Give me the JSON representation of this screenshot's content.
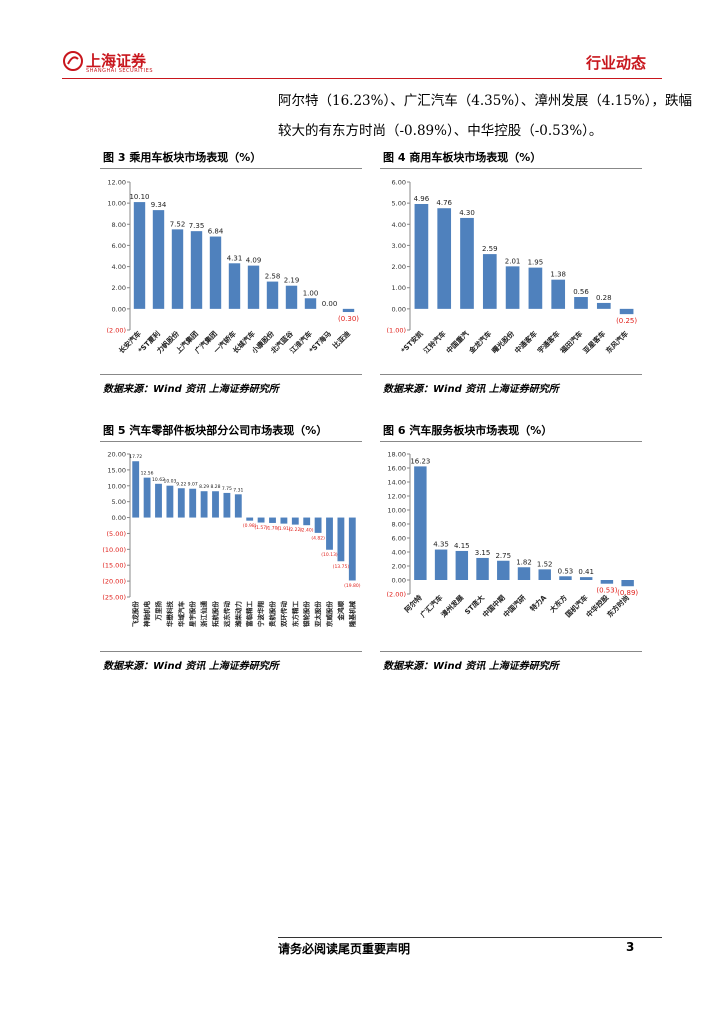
{
  "header": {
    "logo": "上海证券",
    "logo_en": "SHANGHAI SECURITIES",
    "section": "行业动态"
  },
  "paragraph": [
    "阿尔特（16.23%）、广汇汽车（4.35%）、漳州发展（4.15%），跌幅",
    "较大的有东方时尚（-0.89%）、中华控股（-0.53%）。"
  ],
  "chart_data": [
    {
      "type": "bar",
      "title": "图 3 乘用车板块市场表现（%）",
      "source": "数据来源：Wind 资讯 上海证券研究所",
      "color": "#4f81bd",
      "negative_label_color": "#e0201b",
      "categories": [
        "长安汽车",
        "*ST夏利",
        "力帆股份",
        "上汽集团",
        "广汽集团",
        "一汽轿车",
        "长城汽车",
        "小康股份",
        "北汽蓝谷",
        "江淮汽车",
        "*ST海马",
        "比亚迪"
      ],
      "values": [
        10.1,
        9.34,
        7.52,
        7.35,
        6.84,
        4.31,
        4.09,
        2.58,
        2.19,
        1.0,
        0.0,
        -0.3
      ],
      "value_labels": [
        "10.10",
        "9.34",
        "7.52",
        "7.35",
        "6.84",
        "4.31",
        "4.09",
        "2.58",
        "2.19",
        "1.00",
        "0.00",
        "(0.30)"
      ],
      "ylim": [
        -2,
        12
      ],
      "yticks": [
        {
          "value": -2,
          "label": "(2.00)"
        },
        {
          "value": 0,
          "label": "0.00"
        },
        {
          "value": 2,
          "label": "2.00"
        },
        {
          "value": 4,
          "label": "4.00"
        },
        {
          "value": 6,
          "label": "6.00"
        },
        {
          "value": 8,
          "label": "8.00"
        },
        {
          "value": 10,
          "label": "10.00"
        },
        {
          "value": 12,
          "label": "12.00"
        }
      ]
    },
    {
      "type": "bar",
      "title": "图 4 商用车板块市场表现（%）",
      "source": "数据来源：Wind 资讯 上海证券研究所",
      "color": "#4f81bd",
      "negative_label_color": "#e0201b",
      "categories": [
        "*ST安凯",
        "江铃汽车",
        "中国重汽",
        "金龙汽车",
        "曙光股份",
        "中通客车",
        "宇通客车",
        "福田汽车",
        "亚星客车",
        "东风汽车"
      ],
      "values": [
        4.96,
        4.76,
        4.3,
        2.59,
        2.01,
        1.95,
        1.38,
        0.56,
        0.28,
        -0.25
      ],
      "value_labels": [
        "4.96",
        "4.76",
        "4.30",
        "2.59",
        "2.01",
        "1.95",
        "1.38",
        "0.56",
        "0.28",
        "(0.25)"
      ],
      "ylim": [
        -1,
        6
      ],
      "yticks": [
        {
          "value": -1,
          "label": "(1.00)"
        },
        {
          "value": 0,
          "label": "0.00"
        },
        {
          "value": 1,
          "label": "1.00"
        },
        {
          "value": 2,
          "label": "2.00"
        },
        {
          "value": 3,
          "label": "3.00"
        },
        {
          "value": 4,
          "label": "4.00"
        },
        {
          "value": 5,
          "label": "5.00"
        },
        {
          "value": 6,
          "label": "6.00"
        }
      ]
    },
    {
      "type": "bar",
      "title": "图 5 汽车零部件板块部分公司市场表现（%）",
      "source": "数据来源：Wind 资讯 上海证券研究所",
      "color": "#4f81bd",
      "negative_label_color": "#e0201b",
      "categories": [
        "飞龙股份",
        "神驰机电",
        "万里扬",
        "华懋科技",
        "华域汽车",
        "星宇股份",
        "浙江仙通",
        "拓航股份",
        "远东传动",
        "潍柴动力",
        "富临精工",
        "宁波华翔",
        "贵航股份",
        "双环传动",
        "东方精工",
        "银轮股份",
        "亚太股份",
        "京威股份",
        "金鸿顺",
        "隆基机械"
      ],
      "values": [
        17.72,
        12.56,
        10.62,
        10.03,
        9.22,
        9.07,
        8.29,
        8.28,
        7.75,
        7.31,
        -0.98,
        -1.57,
        -1.7,
        -1.91,
        -2.22,
        -2.4,
        -4.82,
        -10.13,
        -13.75,
        -19.8
      ],
      "value_labels": [
        "17.72",
        "12.56",
        "10.62",
        "10.03",
        "9.22",
        "9.07",
        "8.29",
        "8.28",
        "7.75",
        "7.31",
        "(0.98)",
        "(1.57)",
        "(1.70)",
        "(1.91)",
        "(2.22)",
        "(2.40)",
        "(4.82)",
        "(10.13)",
        "(13.75)",
        "(19.80)"
      ],
      "ylim": [
        -25,
        20
      ],
      "yticks": [
        {
          "value": -25,
          "label": "(25.00)"
        },
        {
          "value": -20,
          "label": "(20.00)"
        },
        {
          "value": -15,
          "label": "(15.00)"
        },
        {
          "value": -10,
          "label": "(10.00)"
        },
        {
          "value": -5,
          "label": "(5.00)"
        },
        {
          "value": 0,
          "label": "0.00"
        },
        {
          "value": 5,
          "label": "5.00"
        },
        {
          "value": 10,
          "label": "10.00"
        },
        {
          "value": 15,
          "label": "15.00"
        },
        {
          "value": 20,
          "label": "20.00"
        }
      ]
    },
    {
      "type": "bar",
      "title": "图 6 汽车服务板块市场表现（%）",
      "source": "数据来源：Wind 资讯 上海证券研究所",
      "color": "#4f81bd",
      "negative_label_color": "#e0201b",
      "categories": [
        "阿尔特",
        "广汇汽车",
        "漳州发展",
        "ST庞大",
        "中国中期",
        "中国汽研",
        "特力A",
        "大东方",
        "国机汽车",
        "中华控股",
        "东方时尚"
      ],
      "values": [
        16.23,
        4.35,
        4.15,
        3.15,
        2.75,
        1.82,
        1.52,
        0.53,
        0.41,
        -0.53,
        -0.89
      ],
      "value_labels": [
        "16.23",
        "4.35",
        "4.15",
        "3.15",
        "2.75",
        "1.82",
        "1.52",
        "0.53",
        "0.41",
        "(0.53)",
        "(0.89)"
      ],
      "ylim": [
        -2,
        18
      ],
      "yticks": [
        {
          "value": -2,
          "label": "(2.00)"
        },
        {
          "value": 0,
          "label": "0.00"
        },
        {
          "value": 2,
          "label": "2.00"
        },
        {
          "value": 4,
          "label": "4.00"
        },
        {
          "value": 6,
          "label": "6.00"
        },
        {
          "value": 8,
          "label": "8.00"
        },
        {
          "value": 10,
          "label": "10.00"
        },
        {
          "value": 12,
          "label": "12.00"
        },
        {
          "value": 14,
          "label": "14.00"
        },
        {
          "value": 16,
          "label": "16.00"
        },
        {
          "value": 18,
          "label": "18.00"
        }
      ]
    }
  ],
  "footer": {
    "notice": "请务必阅读尾页重要声明",
    "page": "3"
  }
}
